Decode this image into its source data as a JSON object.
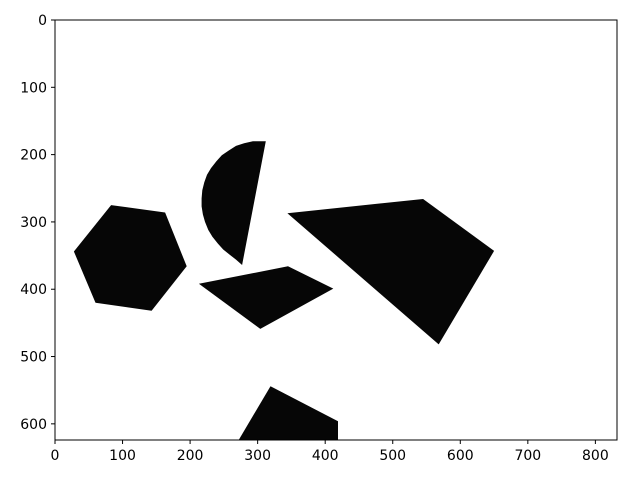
{
  "chart_data": {
    "type": "image",
    "xlim": [
      0,
      832
    ],
    "ylim": [
      624,
      0
    ],
    "x_ticks": [
      0,
      100,
      200,
      300,
      400,
      500,
      600,
      700,
      800
    ],
    "y_ticks": [
      0,
      100,
      200,
      300,
      400,
      500,
      600
    ],
    "x_tick_labels": [
      "0",
      "100",
      "200",
      "300",
      "400",
      "500",
      "600",
      "700",
      "800"
    ],
    "y_tick_labels": [
      "0",
      "100",
      "200",
      "300",
      "400",
      "500",
      "600"
    ],
    "background": "#ffffff",
    "patch_fill": "#060606",
    "regions": [
      {
        "id": "hexagon",
        "points": [
          [
            28,
            344
          ],
          [
            83,
            275
          ],
          [
            163,
            286
          ],
          [
            195,
            366
          ],
          [
            143,
            432
          ],
          [
            60,
            420
          ]
        ]
      },
      {
        "id": "quadrilateral",
        "points": [
          [
            213,
            392
          ],
          [
            345,
            366
          ],
          [
            412,
            399
          ],
          [
            304,
            459
          ]
        ]
      },
      {
        "id": "sector",
        "points": [
          [
            277,
            364
          ],
          [
            312,
            180
          ],
          [
            305,
            180
          ],
          [
            293,
            180
          ],
          [
            280,
            183
          ],
          [
            268,
            187
          ],
          [
            257,
            194
          ],
          [
            247,
            201
          ],
          [
            239,
            210
          ],
          [
            231,
            220
          ],
          [
            225,
            230
          ],
          [
            221,
            241
          ],
          [
            218,
            253
          ],
          [
            217,
            265
          ],
          [
            217,
            277
          ],
          [
            219,
            289
          ],
          [
            222,
            300
          ],
          [
            227,
            312
          ],
          [
            233,
            322
          ],
          [
            241,
            332
          ],
          [
            249,
            341
          ],
          [
            259,
            349
          ],
          [
            268,
            356
          ]
        ]
      },
      {
        "id": "sector-right",
        "points": [
          [
            344,
            287
          ],
          [
            545,
            266
          ],
          [
            650,
            343
          ],
          [
            568,
            482
          ]
        ]
      },
      {
        "id": "bottom-shape",
        "points": [
          [
            272,
            624
          ],
          [
            319,
            544
          ],
          [
            419,
            596
          ],
          [
            419,
            624
          ]
        ]
      }
    ]
  }
}
